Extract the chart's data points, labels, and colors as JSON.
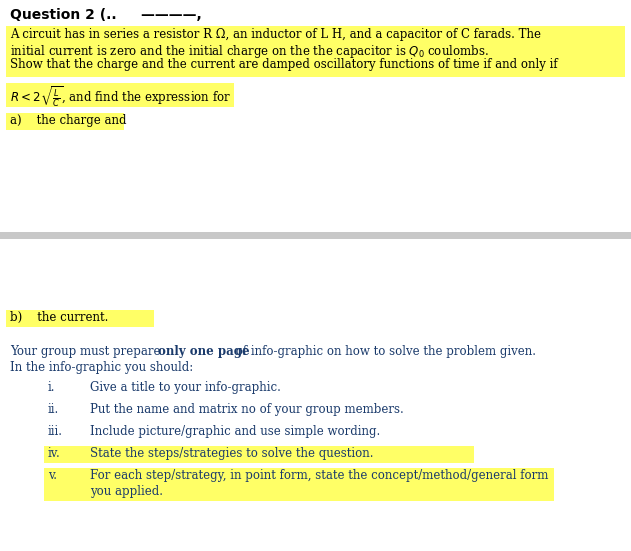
{
  "bg_color": "#ffffff",
  "yellow": "#FFFF66",
  "dark_blue": "#1a3a6b",
  "black": "#000000",
  "gray_sep": "#c8c8c8",
  "fs_title": 9.5,
  "fs_body": 8.5,
  "fig_w": 6.31,
  "fig_h": 5.51,
  "dpi": 100,
  "title": "Question 2 (…     ————,",
  "p1l1": "A circuit has in series a resistor R Ω, an inductor of L H, and a capacitor of C farads. The",
  "p1l2": "initial current is zero and the initial charge on the the capacitor is $Q_0$ coulombs.",
  "p2": "Show that the charge and the current are damped oscillatory functions of time if and only if",
  "p3": "$R < 2\\sqrt{\\frac{L}{C}}$, and find the expression for",
  "p4": "a)    the charge and",
  "pb": "b)    the current.",
  "g1a": "Your group must prepare ",
  "g1b": "only one page",
  "g1c": " of info-graphic on how to solve the problem given.",
  "g2": "In the info-graphic you should:",
  "items": [
    {
      "num": "i.",
      "text": "Give a title to your info-graphic.",
      "hl": false,
      "extra": null
    },
    {
      "num": "ii.",
      "text": "Put the name and matrix no of your group members.",
      "hl": false,
      "extra": null
    },
    {
      "num": "iii.",
      "text": "Include picture/graphic and use simple wording.",
      "hl": false,
      "extra": null
    },
    {
      "num": "iv.",
      "text": "State the steps/strategies to solve the question.",
      "hl": true,
      "extra": null
    },
    {
      "num": "v.",
      "text": "For each step/strategy, in point form, state the concept/method/general form",
      "hl": true,
      "extra": "you applied."
    }
  ]
}
